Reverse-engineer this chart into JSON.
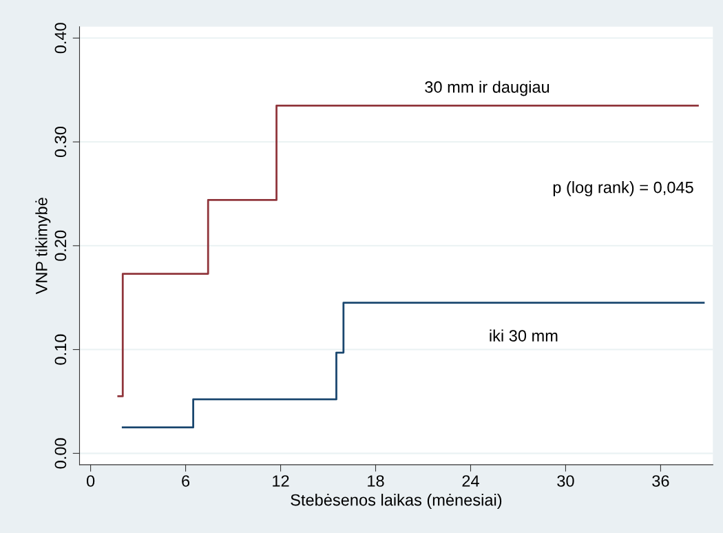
{
  "chart_data": {
    "type": "step",
    "xlabel": "Stebėsenos laikas (mėnesiai)",
    "ylabel": "VNP tikimybė",
    "series": [
      {
        "name": "30 mm ir daugiau",
        "color": "#90353b",
        "x": [
          1.75,
          2.03,
          7.42,
          11.74,
          38.35
        ],
        "values": [
          0.055,
          0.173,
          0.244,
          0.335,
          0.335
        ]
      },
      {
        "name": "iki 30 mm",
        "color": "#1a476f",
        "x": [
          2.03,
          6.48,
          15.52,
          15.97,
          38.72
        ],
        "values": [
          0.025,
          0.052,
          0.097,
          0.145,
          0.145
        ]
      }
    ],
    "xlim": [
      -0.7,
      39.3
    ],
    "xticks": [
      0,
      6,
      12,
      18,
      24,
      30,
      36
    ],
    "ylim": [
      -0.011,
      0.411
    ],
    "yticks": [
      {
        "value": 0,
        "label": "0.00"
      },
      {
        "value": 0.1,
        "label": "0.10"
      },
      {
        "value": 0.2,
        "label": "0.20"
      },
      {
        "value": 0.3,
        "label": "0.30"
      },
      {
        "value": 0.4,
        "label": "0.40"
      }
    ],
    "grid": "y",
    "legend": false,
    "annotations": [
      "p (log rank) = 0,045"
    ]
  }
}
